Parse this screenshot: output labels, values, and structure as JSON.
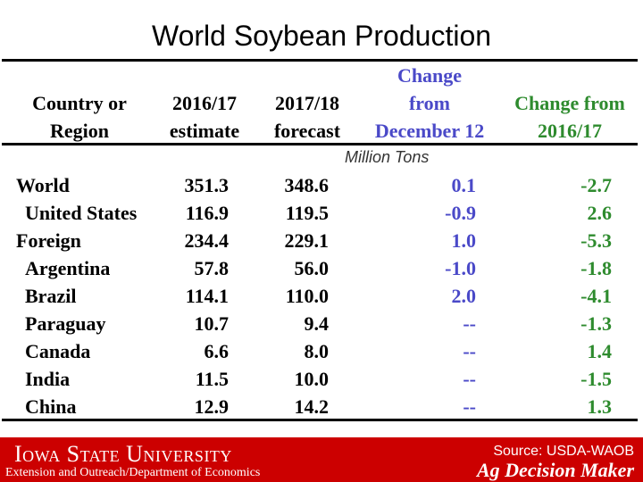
{
  "title": "World Soybean Production",
  "headers": {
    "col1": [
      "Country or",
      "Region"
    ],
    "col2": [
      "2016/17",
      "estimate"
    ],
    "col3": [
      "2017/18",
      "forecast"
    ],
    "col4": [
      "Change",
      "from",
      "December 12"
    ],
    "col5": [
      "Change from",
      "2016/17"
    ]
  },
  "units": "Million Tons",
  "rows": [
    {
      "name": "World",
      "est": "351.3",
      "fcst": "348.6",
      "chg_dec": "0.1",
      "chg_prev": "-2.7",
      "indent": false
    },
    {
      "name": "United States",
      "est": "116.9",
      "fcst": "119.5",
      "chg_dec": "-0.9",
      "chg_prev": "2.6",
      "indent": true
    },
    {
      "name": "Foreign",
      "est": "234.4",
      "fcst": "229.1",
      "chg_dec": "1.0",
      "chg_prev": "-5.3",
      "indent": false
    },
    {
      "name": "Argentina",
      "est": "57.8",
      "fcst": "56.0",
      "chg_dec": "-1.0",
      "chg_prev": "-1.8",
      "indent": true
    },
    {
      "name": "Brazil",
      "est": "114.1",
      "fcst": "110.0",
      "chg_dec": "2.0",
      "chg_prev": "-4.1",
      "indent": true
    },
    {
      "name": "Paraguay",
      "est": "10.7",
      "fcst": "9.4",
      "chg_dec": "--",
      "chg_prev": "-1.3",
      "indent": true
    },
    {
      "name": "Canada",
      "est": "6.6",
      "fcst": "8.0",
      "chg_dec": "--",
      "chg_prev": "1.4",
      "indent": true
    },
    {
      "name": "India",
      "est": "11.5",
      "fcst": "10.0",
      "chg_dec": "--",
      "chg_prev": "-1.5",
      "indent": true
    },
    {
      "name": "China",
      "est": "12.9",
      "fcst": "14.2",
      "chg_dec": "--",
      "chg_prev": "1.3",
      "indent": true
    }
  ],
  "footer": {
    "logo": "Iowa State University",
    "subtitle": "Extension and Outreach/Department of Economics",
    "source": "Source: USDA-WAOB",
    "brand": "Ag Decision Maker"
  },
  "colors": {
    "change_dec": "#4a49c8",
    "change_prev": "#2e8b2e",
    "footer_bg": "#cc0000"
  }
}
